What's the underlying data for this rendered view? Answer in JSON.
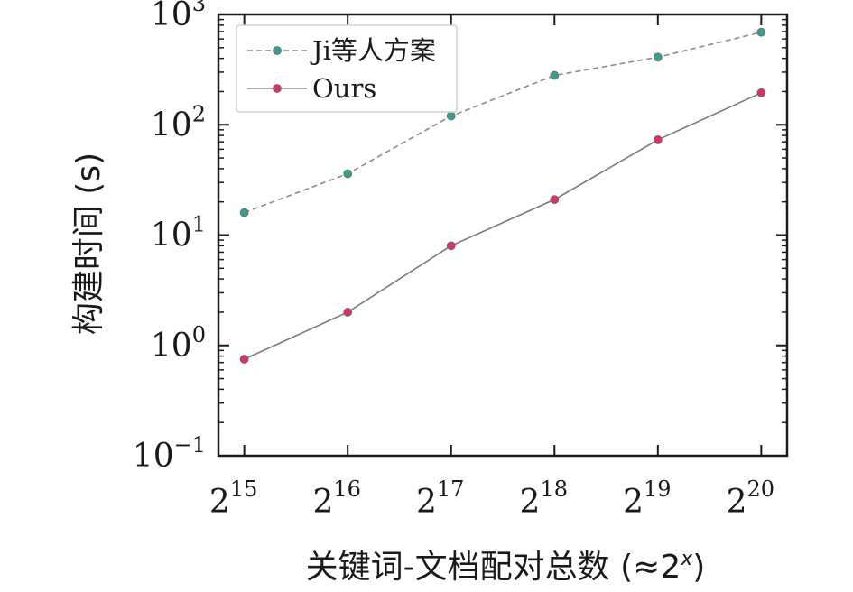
{
  "chart_data": {
    "type": "line",
    "title": "",
    "xlabel": "关键词-文档配对总数 (≈2^x)",
    "xlabel_parts": {
      "text": "关键词-文档配对总数 (≈2",
      "sup": "x",
      "close": ")"
    },
    "ylabel": "构建时间 (s)",
    "y_scale": "log",
    "ylim": [
      0.1,
      1000
    ],
    "x": [
      15,
      16,
      17,
      18,
      19,
      20
    ],
    "x_tick_labels": [
      {
        "base": "2",
        "exp": "15"
      },
      {
        "base": "2",
        "exp": "16"
      },
      {
        "base": "2",
        "exp": "17"
      },
      {
        "base": "2",
        "exp": "18"
      },
      {
        "base": "2",
        "exp": "19"
      },
      {
        "base": "2",
        "exp": "20"
      }
    ],
    "y_ticks": [
      0.1,
      1,
      10,
      100,
      1000
    ],
    "y_tick_labels": [
      {
        "base": "10",
        "exp": "−1"
      },
      {
        "base": "10",
        "exp": "0"
      },
      {
        "base": "10",
        "exp": "1"
      },
      {
        "base": "10",
        "exp": "2"
      },
      {
        "base": "10",
        "exp": "3"
      }
    ],
    "grid": false,
    "legend_position": "top-left",
    "series": [
      {
        "name": "Ji等人方案",
        "values": [
          16,
          36,
          120,
          280,
          410,
          690
        ],
        "color": "#3a9e8f",
        "line_style": "dashed"
      },
      {
        "name": "Ours",
        "values": [
          0.75,
          2.0,
          8.0,
          21,
          73,
          195
        ],
        "color": "#d6336c",
        "line_style": "solid"
      }
    ]
  }
}
